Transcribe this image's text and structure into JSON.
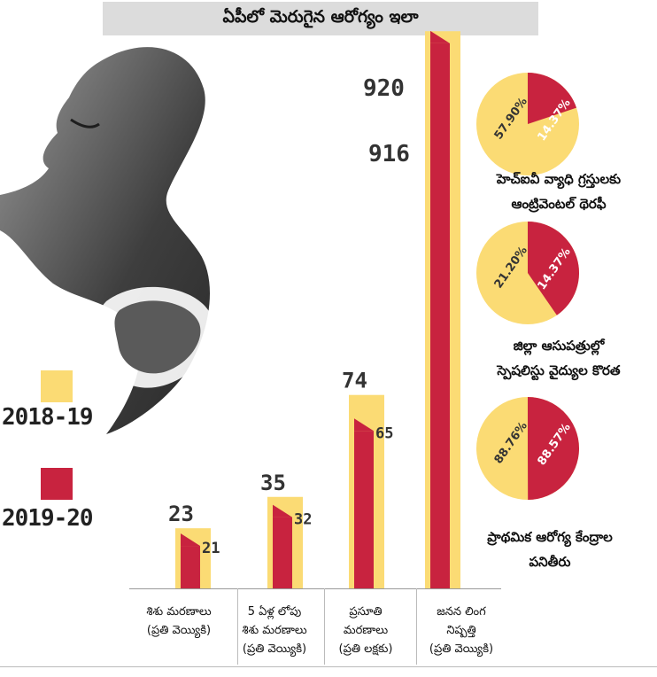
{
  "title": "ఏపీలో మెరుగైన ఆరోగ్యం ఇలా",
  "legend": {
    "items": [
      {
        "label": "2018-19",
        "color": "#fbdb74"
      },
      {
        "label": "2019-20",
        "color": "#c8233f"
      }
    ]
  },
  "chart_data": [
    {
      "type": "bar",
      "categories": [
        [
          "శిశు మరణాలు",
          "(ప్రతి వెయ్యికి)"
        ],
        [
          "5 ఏళ్ల లోపు",
          "శిశు మరణాలు",
          "(ప్రతి వెయ్యికి)"
        ],
        [
          "ప్రసూతి",
          "మరణాలు",
          "(ప్రతి లక్షకు)"
        ],
        [
          "జనన లింగ",
          "నిష్పత్తి",
          "(ప్రతి వెయ్యికి)"
        ]
      ],
      "series": [
        {
          "name": "2018-19",
          "values": [
            23,
            35,
            74,
            916
          ],
          "value_labels": [
            "23",
            "35",
            "74",
            "916"
          ]
        },
        {
          "name": "2019-20",
          "values": [
            21,
            32,
            65,
            920
          ],
          "value_labels": [
            "21",
            "32",
            "65",
            "920"
          ]
        }
      ]
    },
    {
      "type": "pie",
      "caption": [
        "హెచ్ఐవీ వ్యాధి గ్రస్తులకు",
        "ఆంట్రివెంటల్ థెరఫీ"
      ],
      "slices": [
        {
          "name": "2018-19",
          "value": 57.9,
          "label": "57.90%"
        },
        {
          "name": "2019-20",
          "value": 14.37,
          "label": "14.37%"
        }
      ]
    },
    {
      "type": "pie",
      "caption": [
        "జిల్లా ఆసుపత్రుల్లో",
        "స్పెషలిస్టు వైద్యుల కొరత"
      ],
      "slices": [
        {
          "name": "2018-19",
          "value": 21.2,
          "label": "21.20%"
        },
        {
          "name": "2019-20",
          "value": 14.37,
          "label": "14.37%"
        }
      ]
    },
    {
      "type": "pie",
      "caption": [
        "ప్రాథమిక ఆరోగ్య కేంద్రాల",
        "పనితీరు"
      ],
      "slices": [
        {
          "name": "2018-19",
          "value": 88.76,
          "label": "88.76%"
        },
        {
          "name": "2019-20",
          "value": 88.57,
          "label": "88.57%"
        }
      ]
    }
  ]
}
